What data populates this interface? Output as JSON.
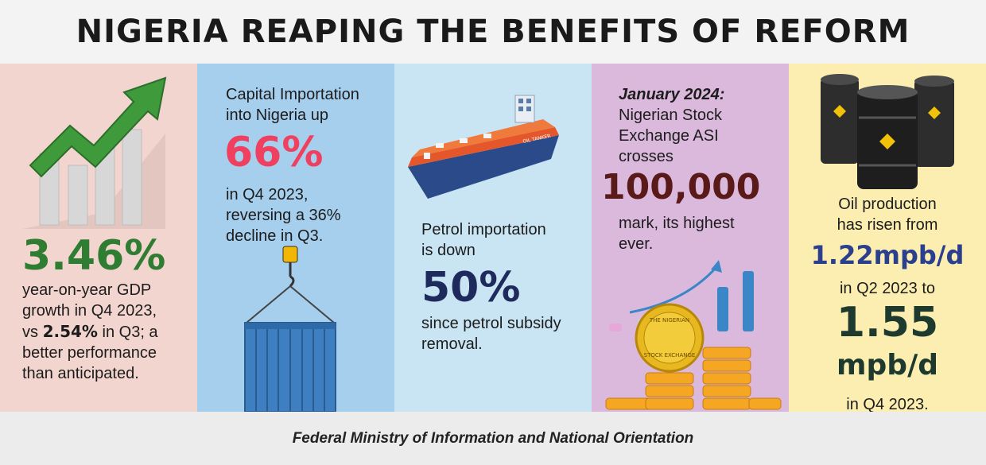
{
  "header": {
    "title": "NIGERIA REAPING THE BENEFITS OF REFORM"
  },
  "gdp": {
    "figure": "3.46%",
    "line1": "year-on-year GDP",
    "line2": "growth in Q4 2023,",
    "line3_pre": "vs ",
    "line3_bold": "2.54%",
    "line3_post": " in Q3; a",
    "line4": "better performance",
    "line5": "than anticipated.",
    "color": "#2e7d32"
  },
  "capital": {
    "line1": "Capital Importation",
    "line2": "into Nigeria up",
    "figure": "66%",
    "line3": "in Q4 2023,",
    "line4": "reversing a 36%",
    "line5": "decline in Q3.",
    "color": "#f0405f"
  },
  "petrol": {
    "ship_label": "OIL TANKER",
    "line1": "Petrol importation",
    "line2": "is down",
    "figure": "50%",
    "line3": "since petrol subsidy",
    "line4": "removal.",
    "color": "#1f2a5c"
  },
  "stock": {
    "date": "January 2024:",
    "line1": "Nigerian Stock",
    "line2": "Exchange ASI",
    "line3": "crosses",
    "figure": "100,000",
    "line4": "mark, its highest",
    "line5": "ever.",
    "seal_top": "THE NIGERIAN",
    "seal_bottom": "STOCK EXCHANGE",
    "color": "#5a1a1a"
  },
  "oil": {
    "line1": "Oil production",
    "line2": "has risen from",
    "figure1": "1.22mpb/d",
    "line3": "in Q2 2023 to",
    "figure2a": "1.55",
    "figure2b": "mpb/d",
    "line4": "in Q4 2023.",
    "color1": "#2b3f8f",
    "color2": "#1e3a2e"
  },
  "footer": {
    "text": "Federal Ministry of Information and National Orientation"
  }
}
